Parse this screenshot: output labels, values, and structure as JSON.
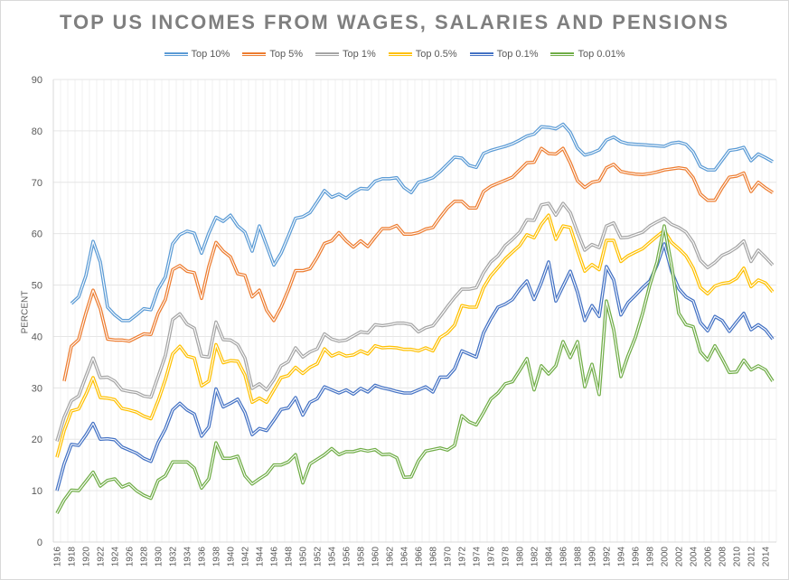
{
  "chart_data": {
    "type": "line",
    "title": "TOP US INCOMES FROM WAGES, SALARIES AND PENSIONS",
    "xlabel": "",
    "ylabel": "PERCENT",
    "ylim": [
      0,
      90
    ],
    "yticks": [
      0,
      10,
      20,
      30,
      40,
      50,
      60,
      70,
      80,
      90
    ],
    "x_start": 1916,
    "x_end": 2015,
    "xtick_labels": [
      "1916",
      "1918",
      "1920",
      "1922",
      "1924",
      "1926",
      "1928",
      "1930",
      "1932",
      "1934",
      "1936",
      "1938",
      "1940",
      "1942",
      "1944",
      "1946",
      "1948",
      "1950",
      "1952",
      "1954",
      "1956",
      "1958",
      "1960",
      "1962",
      "1964",
      "1966",
      "1968",
      "1970",
      "1972",
      "1974",
      "1976",
      "1978",
      "1980",
      "1982",
      "1984",
      "1986",
      "1988",
      "1990",
      "1992",
      "1994",
      "1996",
      "1998",
      "2000",
      "2002",
      "2004",
      "2006",
      "2008",
      "2010",
      "2012",
      "2014"
    ],
    "grid": true,
    "legend_position": "top",
    "series": [
      {
        "name": "Top 10%",
        "color": "#5B9BD5",
        "values": [
          null,
          null,
          46.4,
          47.7,
          51.8,
          58.5,
          54.5,
          45.7,
          44.2,
          43.1,
          43.1,
          44.2,
          45.4,
          45.2,
          49.2,
          51.6,
          58.0,
          59.8,
          60.5,
          60.1,
          56.2,
          60.1,
          63.2,
          62.4,
          63.6,
          61.5,
          60.3,
          56.6,
          61.5,
          57.7,
          53.9,
          56.2,
          59.5,
          63.0,
          63.3,
          64.1,
          66.2,
          68.4,
          67.1,
          67.7,
          66.9,
          68.0,
          68.8,
          68.7,
          70.2,
          70.7,
          70.7,
          70.9,
          69.0,
          68.0,
          70.0,
          70.4,
          70.9,
          72.1,
          73.5,
          74.9,
          74.7,
          73.3,
          72.9,
          75.6,
          76.2,
          76.6,
          77.0,
          77.5,
          78.2,
          79.0,
          79.4,
          80.8,
          80.7,
          80.4,
          81.3,
          79.7,
          76.7,
          75.3,
          75.7,
          76.3,
          78.2,
          78.8,
          77.9,
          77.5,
          77.4,
          77.3,
          77.2,
          77.1,
          77.0,
          77.6,
          77.8,
          77.4,
          75.9,
          73.1,
          72.4,
          72.4,
          74.3,
          76.2,
          76.4,
          76.8,
          74.2,
          75.5,
          74.8,
          74.0
        ]
      },
      {
        "name": "Top 5%",
        "color": "#ED7D31",
        "values": [
          null,
          31.3,
          38.1,
          39.4,
          44.5,
          49.0,
          45.4,
          39.5,
          39.3,
          39.3,
          39.1,
          39.8,
          40.5,
          40.4,
          44.5,
          47.2,
          53.0,
          53.8,
          52.7,
          52.4,
          47.4,
          53.6,
          58.3,
          56.6,
          55.5,
          52.2,
          51.9,
          47.7,
          49.0,
          45.1,
          43.1,
          45.7,
          49.0,
          52.8,
          52.8,
          53.2,
          55.4,
          58.1,
          58.6,
          60.2,
          58.6,
          57.4,
          58.6,
          57.5,
          59.3,
          61.0,
          61.0,
          61.6,
          59.9,
          59.9,
          60.2,
          60.9,
          61.2,
          63.2,
          65.0,
          66.3,
          66.3,
          65.0,
          65.0,
          68.2,
          69.2,
          69.8,
          70.4,
          71.0,
          72.4,
          73.8,
          73.9,
          76.6,
          75.6,
          75.5,
          76.6,
          73.8,
          70.3,
          69.0,
          70.0,
          70.3,
          72.8,
          73.5,
          72.1,
          71.8,
          71.6,
          71.5,
          71.7,
          72.0,
          72.4,
          72.6,
          72.8,
          72.6,
          70.9,
          67.7,
          66.5,
          66.5,
          68.9,
          71.0,
          71.2,
          71.8,
          68.2,
          70.0,
          68.9,
          68.0
        ]
      },
      {
        "name": "Top 1%",
        "color": "#A5A5A5",
        "values": [
          19.6,
          24.3,
          27.5,
          28.4,
          32.2,
          35.8,
          32.0,
          32.1,
          31.3,
          29.6,
          29.3,
          29.1,
          28.4,
          28.2,
          32.2,
          36.3,
          43.3,
          44.4,
          42.4,
          41.6,
          36.2,
          36.0,
          42.8,
          39.4,
          39.3,
          38.4,
          35.8,
          29.9,
          30.8,
          29.6,
          31.6,
          34.3,
          35.1,
          37.8,
          36.0,
          37.0,
          37.6,
          40.5,
          39.5,
          39.1,
          39.3,
          40.1,
          40.9,
          40.7,
          42.3,
          42.1,
          42.3,
          42.6,
          42.6,
          42.3,
          40.9,
          41.7,
          42.1,
          43.9,
          45.8,
          47.6,
          49.2,
          49.2,
          49.5,
          52.4,
          54.5,
          55.7,
          57.7,
          58.9,
          60.3,
          62.7,
          62.6,
          65.6,
          65.9,
          63.6,
          65.9,
          64.1,
          60.3,
          56.8,
          57.9,
          57.3,
          61.5,
          62.1,
          59.2,
          59.3,
          59.8,
          60.3,
          61.5,
          62.3,
          63.0,
          61.8,
          61.2,
          60.3,
          58.3,
          54.8,
          53.4,
          54.4,
          55.8,
          56.4,
          57.3,
          58.6,
          54.6,
          56.8,
          55.4,
          53.9
        ]
      },
      {
        "name": "Top 0.5%",
        "color": "#FFC000",
        "values": [
          16.5,
          21.7,
          25.5,
          25.9,
          28.7,
          32.0,
          28.1,
          28.0,
          27.7,
          26.0,
          25.7,
          25.3,
          24.5,
          24.0,
          27.5,
          31.6,
          36.6,
          38.1,
          36.2,
          35.8,
          30.4,
          31.3,
          38.4,
          34.9,
          35.3,
          35.2,
          32.5,
          27.2,
          28.0,
          27.2,
          29.6,
          32.0,
          32.4,
          34.0,
          32.8,
          34.0,
          34.7,
          37.6,
          36.2,
          36.8,
          36.2,
          36.4,
          37.2,
          36.6,
          38.2,
          37.8,
          37.9,
          37.8,
          37.5,
          37.5,
          37.2,
          37.8,
          37.2,
          39.8,
          40.7,
          42.2,
          46.0,
          45.7,
          45.7,
          49.5,
          51.8,
          53.4,
          55.1,
          56.4,
          57.7,
          59.8,
          59.2,
          61.8,
          63.6,
          58.9,
          61.5,
          61.2,
          56.8,
          52.7,
          54.0,
          53.0,
          58.7,
          58.7,
          54.6,
          55.7,
          56.4,
          57.1,
          58.3,
          59.5,
          60.6,
          58.3,
          57.1,
          55.7,
          53.3,
          49.5,
          48.3,
          49.8,
          50.3,
          50.5,
          51.3,
          53.3,
          49.7,
          51.0,
          50.4,
          48.7
        ]
      },
      {
        "name": "Top 0.1%",
        "color": "#4472C4",
        "values": [
          10.0,
          15.2,
          19.0,
          18.8,
          20.8,
          23.1,
          20.0,
          20.1,
          19.9,
          18.5,
          17.9,
          17.3,
          16.3,
          15.7,
          19.4,
          22.0,
          25.7,
          27.0,
          25.7,
          24.9,
          20.6,
          22.4,
          29.8,
          26.3,
          27.0,
          27.8,
          25.2,
          20.9,
          22.1,
          21.7,
          23.7,
          25.8,
          26.1,
          28.1,
          24.7,
          27.2,
          27.9,
          30.2,
          29.6,
          29.0,
          29.6,
          28.8,
          29.9,
          29.2,
          30.5,
          30.0,
          29.7,
          29.3,
          29.0,
          29.0,
          29.6,
          30.2,
          29.2,
          32.1,
          32.1,
          33.7,
          37.2,
          36.6,
          36.0,
          40.7,
          43.4,
          45.7,
          46.3,
          47.2,
          49.2,
          50.8,
          47.2,
          50.5,
          54.5,
          46.9,
          49.8,
          52.7,
          48.6,
          43.1,
          46.0,
          43.9,
          53.6,
          51.0,
          44.2,
          46.6,
          48.0,
          49.5,
          50.8,
          53.9,
          58.0,
          52.7,
          49.3,
          47.7,
          46.9,
          42.7,
          41.1,
          43.9,
          43.1,
          41.0,
          42.8,
          44.5,
          41.3,
          42.3,
          41.3,
          39.5
        ]
      },
      {
        "name": "Top 0.01%",
        "color": "#70AD47",
        "values": [
          5.6,
          8.2,
          10.1,
          10.0,
          11.8,
          13.6,
          10.9,
          12.0,
          12.3,
          10.7,
          11.3,
          10.0,
          9.1,
          8.5,
          12.0,
          12.9,
          15.6,
          15.6,
          15.6,
          14.4,
          10.5,
          12.3,
          19.3,
          16.3,
          16.3,
          16.7,
          12.9,
          11.3,
          12.3,
          13.2,
          15.0,
          15.0,
          15.6,
          17.0,
          11.5,
          15.2,
          16.1,
          17.0,
          18.2,
          17.0,
          17.6,
          17.6,
          18.0,
          17.7,
          18.0,
          17.0,
          17.1,
          16.4,
          12.6,
          12.7,
          15.8,
          17.7,
          18.0,
          18.3,
          17.9,
          18.8,
          24.6,
          23.4,
          22.8,
          25.2,
          27.8,
          29.0,
          30.8,
          31.2,
          33.4,
          35.7,
          29.6,
          34.3,
          32.7,
          34.3,
          39.0,
          35.9,
          39.0,
          30.2,
          34.6,
          28.7,
          46.9,
          41.3,
          32.2,
          36.3,
          39.8,
          44.5,
          50.0,
          54.5,
          61.5,
          53.9,
          44.5,
          42.3,
          41.9,
          37.0,
          35.4,
          38.2,
          35.7,
          33.0,
          33.1,
          35.4,
          33.5,
          34.3,
          33.5,
          31.3
        ]
      }
    ]
  }
}
